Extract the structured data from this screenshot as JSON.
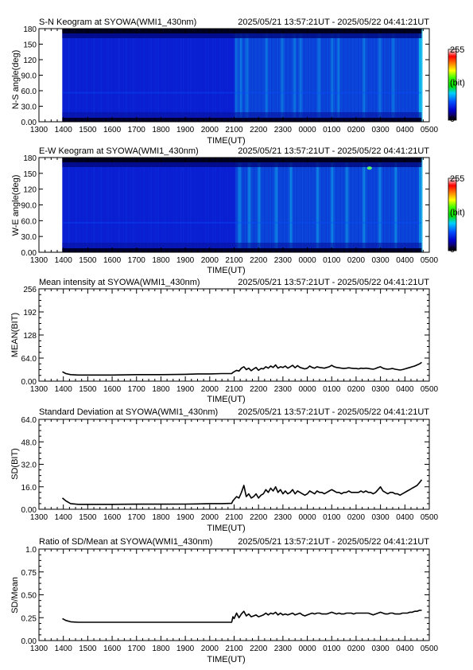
{
  "figure": {
    "station_time_range": "2025/05/21 13:57:21UT - 2025/05/22 04:41:21UT",
    "xlabel": "TIME(UT)",
    "xticks": [
      "1300",
      "1400",
      "1500",
      "1600",
      "1700",
      "1800",
      "1900",
      "2000",
      "2100",
      "2200",
      "2300",
      "0000",
      "0100",
      "0200",
      "0300",
      "0400",
      "0500"
    ],
    "data_start_hour": 13.956,
    "data_end_hour": 28.689
  },
  "colors": {
    "keogram_bg": "#0a1ed2",
    "trace": "#000000"
  },
  "chart_data": [
    {
      "type": "heatmap",
      "title": "S-N Keogram at SYOWA(WMI1_430nm)",
      "time_range": "2025/05/21 13:57:21UT - 2025/05/22 04:41:21UT",
      "xlabel": "TIME(UT)",
      "ylabel": "N-S angle(deg)",
      "xlim": [
        13,
        29
      ],
      "ylim": [
        0,
        180
      ],
      "yticks": [
        "0.00",
        "30.0",
        "60.0",
        "90.0",
        "120",
        "150",
        "180"
      ],
      "colorbar": {
        "min": 0,
        "max": 255,
        "unit": "(bit)",
        "labels": [
          "255",
          "(bit)",
          "0"
        ]
      },
      "data_extent": [
        13.956,
        28.689
      ],
      "brightening_times": [
        21.05,
        21.25,
        21.5,
        22.3,
        22.95,
        23.45,
        23.7,
        24.45,
        25.0,
        25.25,
        26.3,
        26.95,
        27.5,
        28.6
      ],
      "spots": [],
      "pulse_amp": 0.35
    },
    {
      "type": "heatmap",
      "title": "E-W Keogram at SYOWA(WMI1_430nm)",
      "time_range": "2025/05/21 13:57:21UT - 2025/05/22 04:41:21UT",
      "xlabel": "TIME(UT)",
      "ylabel": "W-E angle(deg)",
      "xlim": [
        13,
        29
      ],
      "ylim": [
        0,
        180
      ],
      "yticks": [
        "0.00",
        "30.0",
        "60.0",
        "90.0",
        "120",
        "150",
        "180"
      ],
      "colorbar": {
        "min": 0,
        "max": 255,
        "unit": "(bit)",
        "labels": [
          "255",
          "(bit)",
          "0"
        ]
      },
      "data_extent": [
        13.956,
        28.689
      ],
      "brightening_times": [
        21.2,
        21.6,
        22.0,
        22.7,
        23.3,
        24.4,
        25.0,
        25.6,
        26.3,
        26.95,
        27.6
      ],
      "spots": [
        [
          26.55,
          160
        ]
      ],
      "pulse_amp": 0.45
    },
    {
      "type": "line",
      "title": "Mean intensity at SYOWA(WMI1_430nm)",
      "time_range": "2025/05/21 13:57:21UT - 2025/05/22 04:41:21UT",
      "xlabel": "TIME(UT)",
      "ylabel": "MEAN(BIT)",
      "xlim": [
        13,
        29
      ],
      "ylim": [
        0,
        256
      ],
      "yticks": [
        0,
        64,
        128,
        192,
        256
      ],
      "ytick_labels": [
        "0.00",
        "64.0",
        "128",
        "192",
        "256"
      ],
      "series": [
        {
          "x": [
            13.96,
            14.1,
            14.3,
            14.6,
            15.0,
            16.0,
            17.0,
            18.0,
            19.0,
            19.5,
            20.0,
            20.5,
            20.9,
            20.95,
            21.0,
            21.1,
            21.2,
            21.3,
            21.4,
            21.5,
            21.6,
            21.7,
            21.8,
            21.9,
            22.0,
            22.1,
            22.2,
            22.3,
            22.4,
            22.5,
            22.6,
            22.7,
            22.8,
            22.9,
            23.0,
            23.1,
            23.2,
            23.3,
            23.4,
            23.5,
            23.6,
            23.7,
            23.8,
            23.9,
            24.0,
            24.1,
            24.2,
            24.3,
            24.4,
            24.5,
            24.6,
            24.7,
            24.8,
            24.9,
            25.0,
            25.1,
            25.2,
            25.3,
            25.4,
            25.5,
            25.6,
            25.7,
            25.8,
            25.9,
            26.0,
            26.1,
            26.2,
            26.3,
            26.4,
            26.5,
            26.6,
            26.7,
            26.8,
            26.9,
            27.0,
            27.1,
            27.2,
            27.3,
            27.4,
            27.5,
            27.6,
            27.7,
            27.8,
            27.9,
            28.0,
            28.1,
            28.2,
            28.3,
            28.4,
            28.5,
            28.6,
            28.69
          ],
          "y": [
            26,
            21,
            18,
            17,
            17,
            17,
            18,
            18,
            19,
            20,
            20,
            21,
            21,
            24,
            26,
            30,
            28,
            36,
            40,
            32,
            36,
            29,
            34,
            38,
            30,
            35,
            34,
            40,
            36,
            42,
            38,
            45,
            36,
            40,
            38,
            42,
            36,
            40,
            44,
            37,
            43,
            38,
            36,
            34,
            36,
            42,
            38,
            36,
            40,
            38,
            37,
            36,
            38,
            40,
            44,
            40,
            38,
            37,
            36,
            35,
            36,
            37,
            36,
            35,
            35,
            34,
            36,
            35,
            36,
            35,
            34,
            33,
            35,
            38,
            40,
            36,
            34,
            33,
            34,
            35,
            33,
            32,
            31,
            32,
            34,
            36,
            38,
            40,
            42,
            45,
            48,
            52
          ]
        }
      ]
    },
    {
      "type": "line",
      "title": "Standard Deviation at SYOWA(WMI1_430nm)",
      "time_range": "2025/05/21 13:57:21UT - 2025/05/22 04:41:21UT",
      "xlabel": "TIME(UT)",
      "ylabel": "SD(BIT)",
      "xlim": [
        13,
        29
      ],
      "ylim": [
        0,
        64
      ],
      "yticks": [
        0,
        16,
        32,
        48,
        64
      ],
      "ytick_labels": [
        "0.00",
        "16.0",
        "32.0",
        "48.0",
        "64.0"
      ],
      "series": [
        {
          "x": [
            13.96,
            14.1,
            14.3,
            14.6,
            15.0,
            16.0,
            17.0,
            18.0,
            19.0,
            19.5,
            20.0,
            20.5,
            20.9,
            20.95,
            21.0,
            21.1,
            21.2,
            21.3,
            21.4,
            21.5,
            21.6,
            21.7,
            21.8,
            21.9,
            22.0,
            22.1,
            22.2,
            22.3,
            22.4,
            22.5,
            22.6,
            22.7,
            22.8,
            22.9,
            23.0,
            23.1,
            23.2,
            23.3,
            23.4,
            23.5,
            23.6,
            23.7,
            23.8,
            23.9,
            24.0,
            24.1,
            24.2,
            24.3,
            24.4,
            24.5,
            24.6,
            24.7,
            24.8,
            24.9,
            25.0,
            25.1,
            25.2,
            25.3,
            25.4,
            25.5,
            25.6,
            25.7,
            25.8,
            25.9,
            26.0,
            26.1,
            26.2,
            26.3,
            26.4,
            26.5,
            26.6,
            26.7,
            26.8,
            26.9,
            27.0,
            27.1,
            27.2,
            27.3,
            27.4,
            27.5,
            27.6,
            27.7,
            27.8,
            27.9,
            28.0,
            28.1,
            28.2,
            28.3,
            28.4,
            28.5,
            28.6,
            28.69
          ],
          "y": [
            8,
            6,
            4,
            3.5,
            3.5,
            3.5,
            3.6,
            3.6,
            3.7,
            3.8,
            4,
            4,
            4.2,
            6,
            7,
            9,
            8,
            12,
            17,
            9,
            11,
            8,
            9,
            11,
            8,
            10,
            11,
            14,
            12,
            15,
            13,
            16,
            12,
            14,
            11,
            13,
            11,
            12,
            14,
            11,
            13,
            12,
            11,
            10,
            11,
            13,
            12,
            11,
            13,
            12,
            12,
            11,
            12,
            13,
            14,
            13,
            12,
            12,
            11,
            12,
            12,
            13,
            12,
            12,
            12,
            12,
            13,
            12,
            13,
            12,
            12,
            11,
            12,
            14,
            16,
            13,
            12,
            11,
            12,
            12,
            11,
            11,
            10,
            11,
            12,
            13,
            14,
            15,
            16,
            17,
            19,
            21
          ]
        }
      ]
    },
    {
      "type": "line",
      "title": "Ratio of SD/Mean at SYOWA(WMI1_430nm)",
      "time_range": "2025/05/21 13:57:21UT - 2025/05/22 04:41:21UT",
      "xlabel": "TIME(UT)",
      "ylabel": "SD/Mean",
      "xlim": [
        13,
        29
      ],
      "ylim": [
        0,
        1
      ],
      "yticks": [
        0,
        0.25,
        0.5,
        0.75,
        1.0
      ],
      "ytick_labels": [
        "0.00",
        "0.25",
        "0.50",
        "0.75",
        "1.0"
      ],
      "series": [
        {
          "x": [
            13.96,
            14.1,
            14.3,
            14.6,
            15.0,
            16.0,
            17.0,
            18.0,
            19.0,
            19.5,
            20.0,
            20.5,
            20.9,
            20.95,
            21.0,
            21.1,
            21.2,
            21.3,
            21.4,
            21.5,
            21.6,
            21.7,
            21.8,
            21.9,
            22.0,
            22.1,
            22.2,
            22.3,
            22.4,
            22.5,
            22.6,
            22.7,
            22.8,
            22.9,
            23.0,
            23.1,
            23.2,
            23.3,
            23.4,
            23.5,
            23.6,
            23.7,
            23.8,
            23.9,
            24.0,
            24.1,
            24.2,
            24.3,
            24.4,
            24.5,
            24.6,
            24.7,
            24.8,
            24.9,
            25.0,
            25.1,
            25.2,
            25.3,
            25.4,
            25.5,
            25.6,
            25.7,
            25.8,
            25.9,
            26.0,
            26.1,
            26.2,
            26.3,
            26.4,
            26.5,
            26.6,
            26.7,
            26.8,
            26.9,
            27.0,
            27.1,
            27.2,
            27.3,
            27.4,
            27.5,
            27.6,
            27.7,
            27.8,
            27.9,
            28.0,
            28.1,
            28.2,
            28.3,
            28.4,
            28.5,
            28.6,
            28.69
          ],
          "y": [
            0.24,
            0.22,
            0.205,
            0.2,
            0.2,
            0.2,
            0.2,
            0.2,
            0.2,
            0.2,
            0.2,
            0.2,
            0.2,
            0.26,
            0.24,
            0.3,
            0.25,
            0.29,
            0.32,
            0.27,
            0.29,
            0.26,
            0.27,
            0.28,
            0.26,
            0.27,
            0.28,
            0.3,
            0.28,
            0.3,
            0.29,
            0.31,
            0.28,
            0.3,
            0.28,
            0.29,
            0.28,
            0.29,
            0.3,
            0.28,
            0.29,
            0.3,
            0.28,
            0.27,
            0.28,
            0.29,
            0.3,
            0.29,
            0.3,
            0.3,
            0.29,
            0.29,
            0.29,
            0.3,
            0.31,
            0.3,
            0.29,
            0.3,
            0.29,
            0.29,
            0.3,
            0.3,
            0.3,
            0.29,
            0.3,
            0.3,
            0.3,
            0.3,
            0.3,
            0.3,
            0.29,
            0.28,
            0.29,
            0.3,
            0.31,
            0.3,
            0.29,
            0.29,
            0.3,
            0.3,
            0.29,
            0.29,
            0.29,
            0.3,
            0.3,
            0.3,
            0.31,
            0.31,
            0.32,
            0.32,
            0.33,
            0.33
          ]
        }
      ]
    }
  ]
}
